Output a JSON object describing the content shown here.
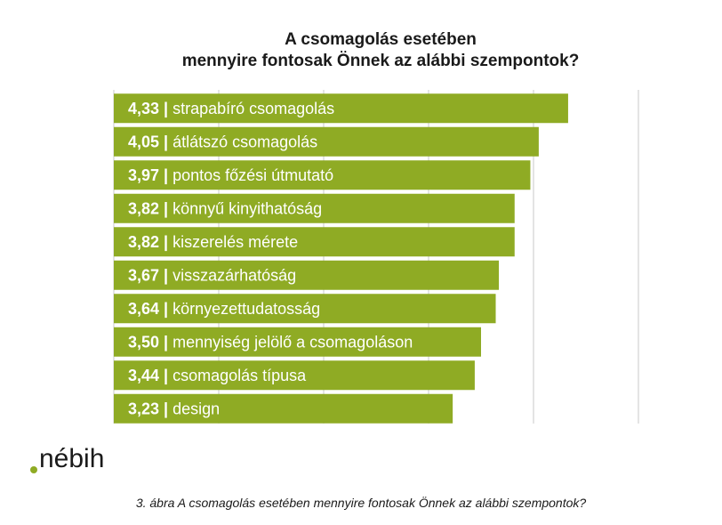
{
  "chart_data": {
    "type": "bar",
    "orientation": "horizontal",
    "title_lines": [
      "A csomagolás esetében",
      "mennyire fontosak Önnek az alábbi szempontok?"
    ],
    "categories": [
      "strapabíró csomagolás",
      "átlátszó csomagolás",
      "pontos főzési útmutató",
      "könnyű kinyithatóság",
      "kiszerelés mérete",
      "visszazárhatóság",
      "környezettudatosság",
      "mennyiség jelölő a csomagoláson",
      "csomagolás típusa",
      "design"
    ],
    "values": [
      4.33,
      4.05,
      3.97,
      3.82,
      3.82,
      3.67,
      3.64,
      3.5,
      3.44,
      3.23
    ],
    "value_labels": [
      "4,33",
      "4,05",
      "3,97",
      "3,82",
      "3,82",
      "3,67",
      "3,64",
      "3,50",
      "3,44",
      "3,23"
    ],
    "label_separator": "|",
    "xlim": [
      0,
      5
    ],
    "grid": true,
    "bar_color": "#8fab24"
  },
  "logo_text": "nébih",
  "caption": "3. ábra A csomagolás esetében mennyire fontosak Önnek az alábbi szempontok?"
}
